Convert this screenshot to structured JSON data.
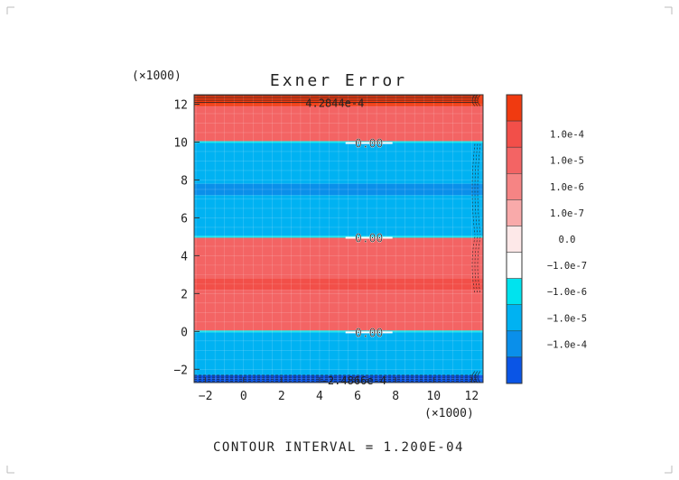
{
  "chart_data": {
    "type": "heatmap",
    "title": "Exner Error",
    "x_multiplier_label": "(×1000)",
    "y_multiplier_label": "(×1000)",
    "xlim": [
      -2.6,
      12.6
    ],
    "ylim": [
      -2.7,
      12.5
    ],
    "x_ticks": [
      -2,
      0,
      2,
      4,
      6,
      8,
      10,
      12
    ],
    "y_ticks": [
      -2,
      0,
      2,
      4,
      6,
      8,
      10,
      12
    ],
    "bands": [
      {
        "y0": -2.7,
        "y1": -2.3,
        "color": "#0a55e6"
      },
      {
        "y0": -2.3,
        "y1": -0.05,
        "color": "#00b2f2"
      },
      {
        "y0": -0.05,
        "y1": 0.05,
        "color": "#00e3ee"
      },
      {
        "y0": 0.05,
        "y1": 2.2,
        "color": "#f36464"
      },
      {
        "y0": 2.2,
        "y1": 2.8,
        "color": "#f24f49"
      },
      {
        "y0": 2.8,
        "y1": 4.95,
        "color": "#f36464"
      },
      {
        "y0": 4.95,
        "y1": 5.05,
        "color": "#00e3ee"
      },
      {
        "y0": 5.05,
        "y1": 7.2,
        "color": "#00b2f2"
      },
      {
        "y0": 7.2,
        "y1": 7.8,
        "color": "#0a8fea"
      },
      {
        "y0": 7.8,
        "y1": 9.95,
        "color": "#00b2f2"
      },
      {
        "y0": 9.95,
        "y1": 10.05,
        "color": "#00e3ee"
      },
      {
        "y0": 10.05,
        "y1": 11.9,
        "color": "#f36464"
      },
      {
        "y0": 11.9,
        "y1": 12.5,
        "color": "#f03a10"
      }
    ],
    "contour_labels": [
      {
        "x": 6.6,
        "y": 9.95,
        "text": "0.00"
      },
      {
        "x": 6.6,
        "y": 4.95,
        "text": "0.00"
      },
      {
        "x": 6.6,
        "y": -0.05,
        "text": "0.00"
      }
    ],
    "edge_labels": [
      {
        "x": 4.8,
        "y": 12.1,
        "text": "4.2844e-4"
      },
      {
        "x": 5.8,
        "y": -2.55,
        "text": "-2.4866e-4"
      }
    ],
    "colorbar": {
      "levels": [
        {
          "label": "",
          "color": "#f03a10"
        },
        {
          "label": "1.0e-4",
          "color": "#f24f49"
        },
        {
          "label": "1.0e-5",
          "color": "#f36464"
        },
        {
          "label": "1.0e-6",
          "color": "#f68484"
        },
        {
          "label": "1.0e-7",
          "color": "#f9aaaa"
        },
        {
          "label": "0.0",
          "color": "#fde8e8"
        },
        {
          "label": "-1.0e-7",
          "color": "#ffffff"
        },
        {
          "label": "-1.0e-6",
          "color": "#00e3ee"
        },
        {
          "label": "-1.0e-5",
          "color": "#00b2f2"
        },
        {
          "label": "-1.0e-4",
          "color": "#0a8fea"
        },
        {
          "label": "",
          "color": "#0a55e6"
        }
      ]
    },
    "footer": "CONTOUR INTERVAL = 1.200E-04"
  }
}
